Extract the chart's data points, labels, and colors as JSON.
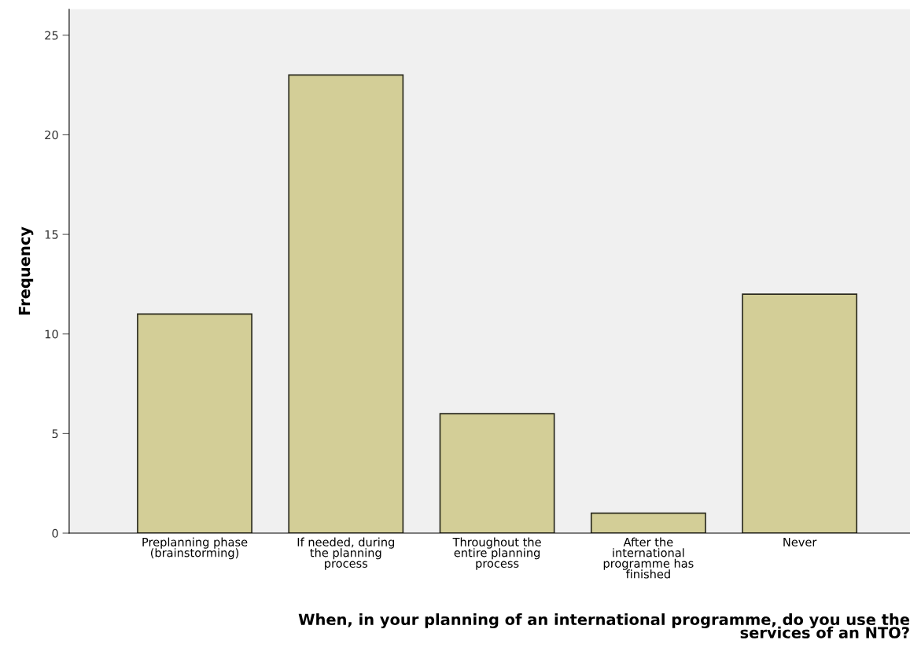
{
  "chart_data": {
    "type": "bar",
    "xlabel": "When, in your planning of an international programme, do you use the\nservices of an NTO?",
    "ylabel": "Frequency",
    "categories": [
      "Preplanning phase\n(brainstorming)",
      "If needed, during\nthe planning\nprocess",
      "Throughout the\nentire planning\nprocess",
      "After the\ninternational\nprogramme has\nfinished",
      "Never"
    ],
    "values": [
      11,
      23,
      6,
      1,
      12
    ],
    "color": "#d3ce97",
    "ylim": [
      0,
      26.3
    ],
    "yticks": [
      0,
      5,
      10,
      15,
      20,
      25
    ],
    "grid": false
  }
}
